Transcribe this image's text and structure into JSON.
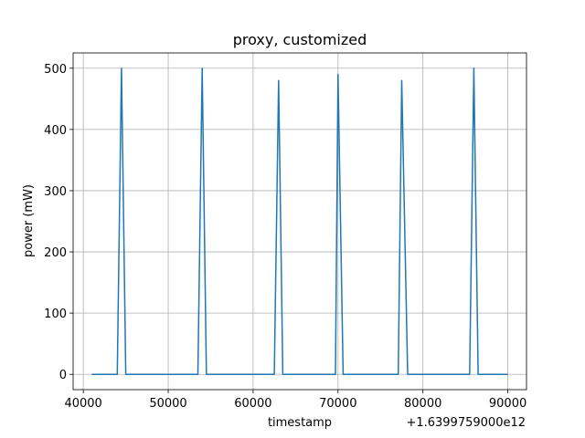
{
  "chart_data": {
    "type": "line",
    "title": "proxy, customized",
    "xlabel": "timestamp",
    "ylabel": "power (mW)",
    "x_offset_label": "+1.6399759000e12",
    "xlim": [
      38800,
      92200
    ],
    "ylim": [
      -25,
      525
    ],
    "xticks": [
      40000,
      50000,
      60000,
      70000,
      80000,
      90000
    ],
    "xtick_labels": [
      "40000",
      "50000",
      "60000",
      "70000",
      "80000",
      "90000"
    ],
    "yticks": [
      0,
      100,
      200,
      300,
      400,
      500
    ],
    "ytick_labels": [
      "0",
      "100",
      "200",
      "300",
      "400",
      "500"
    ],
    "grid": true,
    "color": "#1f77b4",
    "series": [
      {
        "x": [
          41000,
          44000,
          44500,
          45000,
          53500,
          54000,
          54500,
          62500,
          63000,
          63500,
          69700,
          70000,
          70600,
          77100,
          77500,
          78200,
          85500,
          86000,
          86500,
          90000
        ],
        "y": [
          0,
          0,
          500,
          0,
          0,
          500,
          0,
          0,
          480,
          0,
          0,
          490,
          0,
          0,
          480,
          0,
          0,
          500,
          0,
          0
        ]
      }
    ]
  }
}
